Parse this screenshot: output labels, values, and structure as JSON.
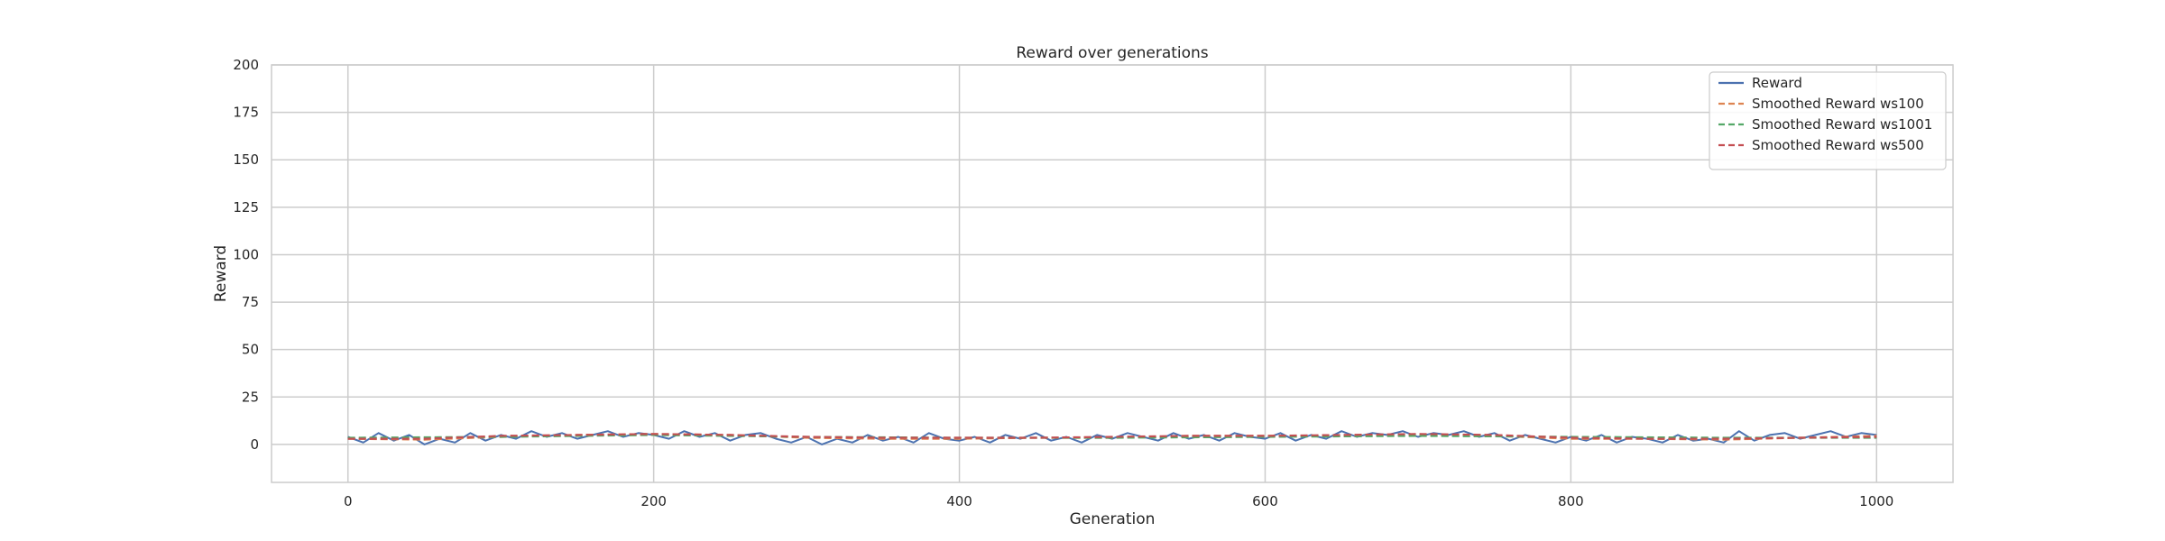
{
  "chart_data": {
    "type": "line",
    "title": "Reward over generations",
    "xlabel": "Generation",
    "ylabel": "Reward",
    "xlim": [
      -50,
      1050
    ],
    "ylim": [
      -20,
      200
    ],
    "xticks": [
      0,
      200,
      400,
      600,
      800,
      1000
    ],
    "yticks": [
      0,
      25,
      50,
      75,
      100,
      125,
      150,
      175,
      200
    ],
    "grid": true,
    "legend_position": "top-right",
    "series": [
      {
        "name": "Reward",
        "color": "#4c72b0",
        "style": "solid",
        "x": [
          0,
          10,
          20,
          30,
          40,
          50,
          60,
          70,
          80,
          90,
          100,
          110,
          120,
          130,
          140,
          150,
          160,
          170,
          180,
          190,
          200,
          210,
          220,
          230,
          240,
          250,
          260,
          270,
          280,
          290,
          300,
          310,
          320,
          330,
          340,
          350,
          360,
          370,
          380,
          390,
          400,
          410,
          420,
          430,
          440,
          450,
          460,
          470,
          480,
          490,
          500,
          510,
          520,
          530,
          540,
          550,
          560,
          570,
          580,
          590,
          600,
          610,
          620,
          630,
          640,
          650,
          660,
          670,
          680,
          690,
          700,
          710,
          720,
          730,
          740,
          750,
          760,
          770,
          780,
          790,
          800,
          810,
          820,
          830,
          840,
          850,
          860,
          870,
          880,
          890,
          900,
          910,
          920,
          930,
          940,
          950,
          960,
          970,
          980,
          990,
          1000
        ],
        "values": [
          4,
          1,
          6,
          2,
          5,
          0,
          3,
          1,
          6,
          2,
          5,
          3,
          7,
          4,
          6,
          3,
          5,
          7,
          4,
          6,
          5,
          3,
          7,
          4,
          6,
          2,
          5,
          6,
          3,
          1,
          4,
          0,
          3,
          1,
          5,
          2,
          4,
          1,
          6,
          3,
          2,
          4,
          1,
          5,
          3,
          6,
          2,
          4,
          1,
          5,
          3,
          6,
          4,
          2,
          6,
          3,
          5,
          2,
          6,
          4,
          3,
          6,
          2,
          5,
          3,
          7,
          4,
          6,
          5,
          7,
          4,
          6,
          5,
          7,
          4,
          6,
          2,
          5,
          3,
          1,
          4,
          2,
          5,
          1,
          4,
          3,
          1,
          5,
          2,
          3,
          1,
          7,
          2,
          5,
          6,
          3,
          5,
          7,
          4,
          6,
          5
        ]
      },
      {
        "name": "Smoothed Reward ws100",
        "color": "#dd8452",
        "style": "dashed",
        "x": [
          0,
          50,
          100,
          150,
          200,
          250,
          300,
          350,
          400,
          450,
          500,
          550,
          600,
          650,
          700,
          750,
          800,
          850,
          900,
          950,
          1000
        ],
        "values": [
          3,
          2.5,
          4,
          5,
          5.5,
          5,
          3.5,
          3,
          3,
          3.5,
          3.5,
          4.5,
          4.5,
          4.5,
          5,
          4.5,
          3,
          3,
          2.5,
          3.5,
          4.5
        ]
      },
      {
        "name": "Smoothed Reward ws1001",
        "color": "#55a868",
        "style": "dashed",
        "x": [
          0,
          100,
          200,
          300,
          400,
          500,
          600,
          700,
          800,
          900,
          1000
        ],
        "values": [
          3.5,
          4,
          5,
          4,
          3.5,
          3.5,
          4,
          4.5,
          4,
          3.5,
          3.5
        ]
      },
      {
        "name": "Smoothed Reward ws500",
        "color": "#c44e52",
        "style": "dashed",
        "x": [
          0,
          50,
          100,
          150,
          200,
          250,
          300,
          350,
          400,
          450,
          500,
          550,
          600,
          650,
          700,
          750,
          800,
          850,
          900,
          950,
          1000
        ],
        "values": [
          3,
          3,
          4.5,
          5,
          5.5,
          5,
          4,
          3.5,
          3.5,
          3.5,
          4,
          4.5,
          4.5,
          5,
          5.5,
          5,
          3.5,
          3,
          3,
          3.5,
          4
        ]
      }
    ]
  }
}
